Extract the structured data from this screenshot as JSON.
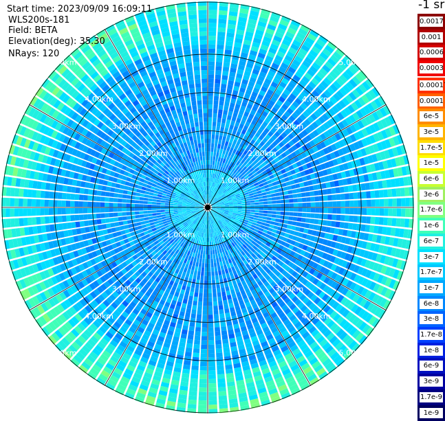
{
  "header": {
    "start_time": "Start time: 2023/09/09 16:09:11",
    "instrument": "WLS200s-181",
    "field": "Field: BETA",
    "elevation": "Elevation(deg): 35.30",
    "nrays": "NRays: 120"
  },
  "colorbar": {
    "unit_title": "-1 sr",
    "levels": [
      {
        "label": "0.0017",
        "color": "#8c0000"
      },
      {
        "label": "0.001",
        "color": "#b00000"
      },
      {
        "label": "0.0006",
        "color": "#d40000"
      },
      {
        "label": "0.0003",
        "color": "#f00000"
      },
      {
        "label": "0.00017",
        "color": "#ff3000"
      },
      {
        "label": "0.0001",
        "color": "#ff6000"
      },
      {
        "label": "6e-5",
        "color": "#ff8c00"
      },
      {
        "label": "3e-5",
        "color": "#ffb400"
      },
      {
        "label": "1.7e-5",
        "color": "#ffdc00"
      },
      {
        "label": "1e-5",
        "color": "#ffff00"
      },
      {
        "label": "6e-6",
        "color": "#c8ff30"
      },
      {
        "label": "3e-6",
        "color": "#a0f060"
      },
      {
        "label": "1.7e-6",
        "color": "#80ff80"
      },
      {
        "label": "1e-6",
        "color": "#40ffb8"
      },
      {
        "label": "6e-7",
        "color": "#20f0e0"
      },
      {
        "label": "3e-7",
        "color": "#00e0ff"
      },
      {
        "label": "1.7e-7",
        "color": "#00c8ff"
      },
      {
        "label": "1e-7",
        "color": "#00a8ff"
      },
      {
        "label": "6e-8",
        "color": "#0088ff"
      },
      {
        "label": "3e-8",
        "color": "#0064ff"
      },
      {
        "label": "1.7e-8",
        "color": "#0040ff"
      },
      {
        "label": "1e-8",
        "color": "#0020e0"
      },
      {
        "label": "6e-9",
        "color": "#0010c0"
      },
      {
        "label": "3e-9",
        "color": "#0000a0"
      },
      {
        "label": "1.7e-9",
        "color": "#000080"
      },
      {
        "label": "1e-9",
        "color": "#000060"
      }
    ]
  },
  "chart_data": {
    "type": "heatmap",
    "projection": "polar-ppi",
    "field": "BETA",
    "elevation_deg": 35.3,
    "n_rays": 120,
    "range_rings_km": [
      1.0,
      2.0,
      3.0,
      4.0,
      5.0
    ],
    "range_ring_labels": [
      "1.00km",
      "2.00km",
      "3.00km",
      "4.00km",
      "5.00km"
    ],
    "radial_spokes_deg": [
      0,
      30,
      60,
      90,
      120,
      150,
      180,
      210,
      240,
      270,
      300,
      330
    ],
    "max_range_km": 5.0,
    "radial_profile": [
      {
        "range_km": 0.5,
        "dominant_level": "1.7e-7",
        "color": "#00c8ff"
      },
      {
        "range_km": 1.5,
        "dominant_level": "6e-8",
        "color": "#0088ff"
      },
      {
        "range_km": 2.5,
        "dominant_level": "6e-8",
        "color": "#0088ff"
      },
      {
        "range_km": 3.5,
        "dominant_level": "1e-7",
        "color": "#00a8ff"
      },
      {
        "range_km": 4.3,
        "dominant_level": "3e-7",
        "color": "#00e0ff"
      },
      {
        "range_km": 4.8,
        "dominant_level": "6e-7",
        "color": "#20f0e0"
      }
    ]
  }
}
